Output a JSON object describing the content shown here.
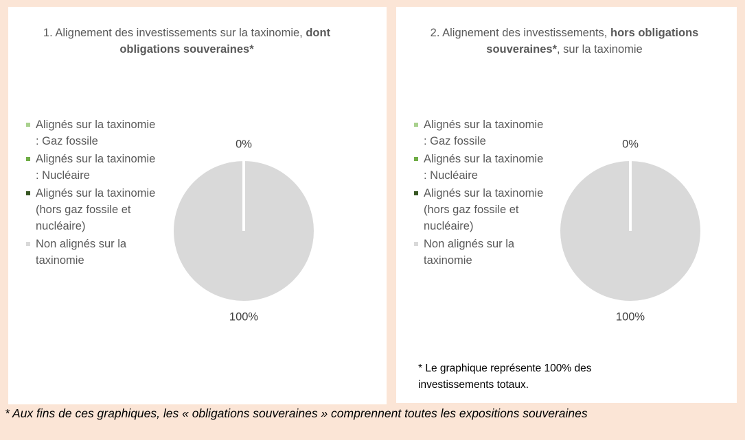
{
  "chart_data": [
    {
      "type": "pie",
      "title": [
        "1. Alignement des investissements sur la taxinomie, ",
        "dont obligations souveraines*"
      ],
      "title_bold": [
        false,
        true
      ],
      "series": [
        {
          "name": "Alignés sur la taxinomie : Gaz fossile",
          "color": "#a9d18e",
          "values": [
            0
          ]
        },
        {
          "name": "Alignés sur la taxinomie : Nucléaire",
          "color": "#70ad47",
          "values": [
            0
          ]
        },
        {
          "name": "Alignés sur la taxinomie (hors gaz fossile et nucléaire)",
          "color": "#375623",
          "values": [
            0
          ]
        },
        {
          "name": "Non alignés sur la taxinomie",
          "color": "#d9d9d9",
          "values": [
            100
          ]
        }
      ],
      "values": [
        0,
        0,
        0,
        100
      ],
      "value_labels": [
        null,
        null,
        "0%",
        "100%"
      ]
    },
    {
      "type": "pie",
      "title": [
        "2. Alignement des investissements, ",
        "hors obligations souveraines*",
        ", sur la taxinomie"
      ],
      "title_bold": [
        false,
        true,
        false
      ],
      "series": [
        {
          "name": "Alignés sur la taxinomie : Gaz fossile",
          "color": "#a9d18e",
          "values": [
            0
          ]
        },
        {
          "name": "Alignés sur la taxinomie : Nucléaire",
          "color": "#70ad47",
          "values": [
            0
          ]
        },
        {
          "name": "Alignés sur la taxinomie (hors gaz fossile et nucléaire)",
          "color": "#375623",
          "values": [
            0
          ]
        },
        {
          "name": "Non alignés sur la taxinomie",
          "color": "#d9d9d9",
          "values": [
            100
          ]
        }
      ],
      "values": [
        0,
        0,
        0,
        100
      ],
      "value_labels": [
        null,
        null,
        "0%",
        "100%"
      ]
    }
  ],
  "note": "* Le graphique représente 100% des investissements totaux.",
  "footnote": "* Aux fins de ces graphiques, les « obligations souveraines » comprennent toutes les expositions souveraines"
}
